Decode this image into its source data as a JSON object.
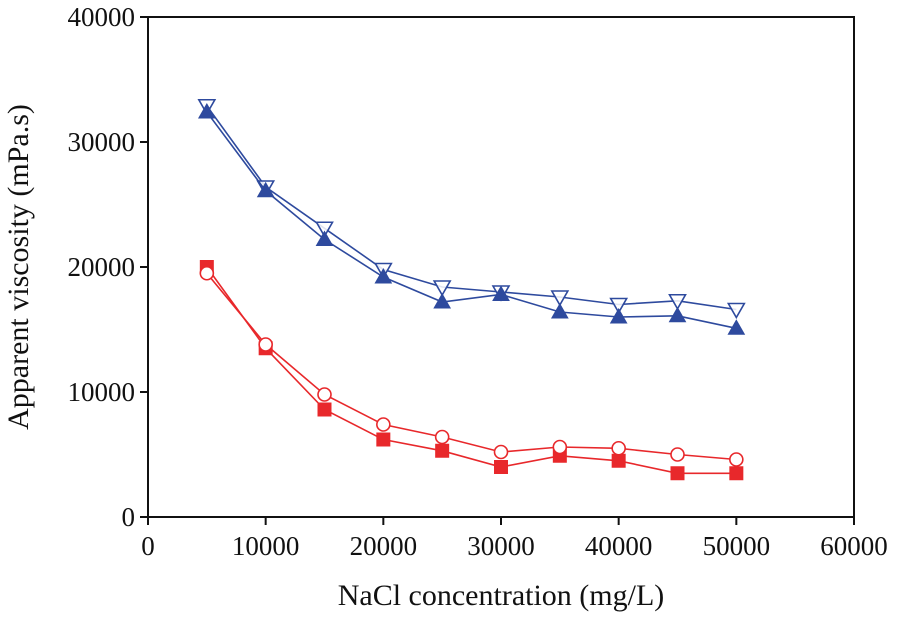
{
  "chart_data": {
    "type": "line",
    "title": "",
    "xlabel": "NaCl concentration (mg/L)",
    "ylabel": "Apparent viscosity (mPa.s)",
    "xlim": [
      0,
      60000
    ],
    "ylim": [
      0,
      40000
    ],
    "x_ticks": [
      0,
      10000,
      20000,
      30000,
      40000,
      50000,
      60000
    ],
    "y_ticks": [
      0,
      10000,
      20000,
      30000,
      40000
    ],
    "grid": false,
    "legend": "none",
    "x": [
      5000,
      10000,
      15000,
      20000,
      25000,
      30000,
      35000,
      40000,
      45000,
      50000
    ],
    "series": [
      {
        "name": "open-down-triangle-blue",
        "marker": "triangle-down-open",
        "color": "#2e4a9e",
        "values": [
          32900,
          26400,
          23100,
          19800,
          18400,
          18000,
          17600,
          17000,
          17300,
          16600
        ]
      },
      {
        "name": "filled-up-triangle-blue",
        "marker": "triangle-up-filled",
        "color": "#2e4a9e",
        "values": [
          32400,
          26100,
          22200,
          19200,
          17200,
          17800,
          16400,
          16000,
          16100,
          15100
        ]
      },
      {
        "name": "filled-square-red",
        "marker": "square-filled",
        "color": "#e8282b",
        "values": [
          20000,
          13500,
          8600,
          6200,
          5300,
          4000,
          4900,
          4500,
          3500,
          3500
        ]
      },
      {
        "name": "open-circle-red",
        "marker": "circle-open",
        "color": "#e8282b",
        "values": [
          19500,
          13800,
          9800,
          7400,
          6400,
          5200,
          5600,
          5500,
          5000,
          4600
        ]
      }
    ]
  }
}
